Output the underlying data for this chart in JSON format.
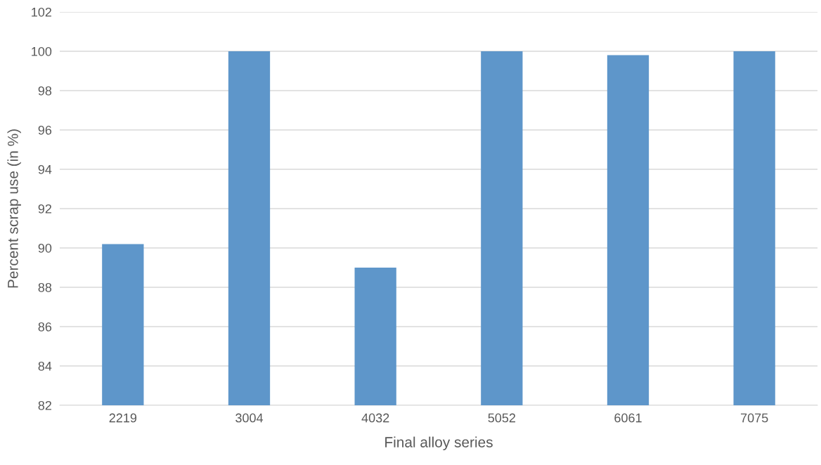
{
  "chart_data": {
    "type": "bar",
    "xlabel": "Final alloy series",
    "ylabel": "Percent scrap use (in %)",
    "categories": [
      "2219",
      "3004",
      "4032",
      "5052",
      "6061",
      "7075"
    ],
    "values": [
      90.2,
      100,
      89.0,
      100,
      99.8,
      100
    ],
    "color": "#5e96ca",
    "ylim": [
      82,
      102
    ],
    "yticks": [
      82,
      84,
      86,
      88,
      90,
      92,
      94,
      96,
      98,
      100,
      102
    ],
    "grid": "y",
    "legend": false
  }
}
